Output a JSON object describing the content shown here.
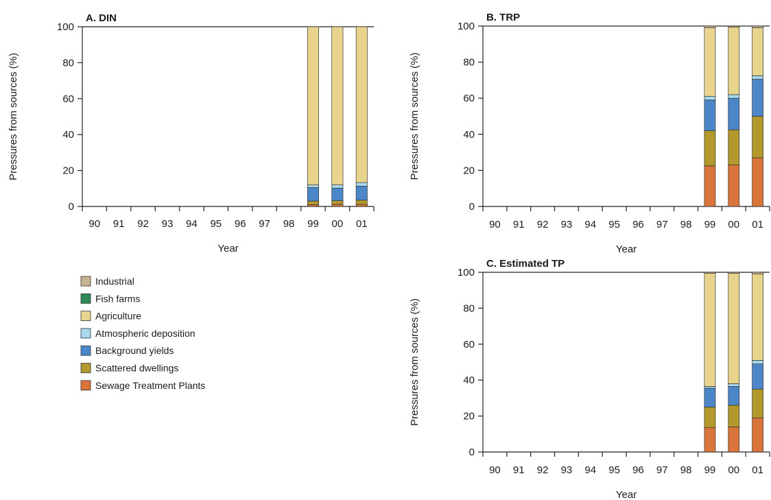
{
  "chart_data": [
    {
      "type": "bar",
      "stacked": true,
      "title": "A. DIN",
      "xlabel": "Year",
      "ylabel": "Pressures from sources (%)",
      "ylim": [
        0,
        100
      ],
      "yticks": [
        0,
        20,
        40,
        60,
        80,
        100
      ],
      "categories": [
        "90",
        "91",
        "92",
        "93",
        "94",
        "95",
        "96",
        "97",
        "98",
        "99",
        "00",
        "01"
      ],
      "series": [
        {
          "name": "Sewage Treatment Plants",
          "values": [
            null,
            null,
            null,
            null,
            null,
            null,
            null,
            null,
            null,
            1.0,
            1.2,
            1.2
          ]
        },
        {
          "name": "Scattered dwellings",
          "values": [
            null,
            null,
            null,
            null,
            null,
            null,
            null,
            null,
            null,
            2.0,
            2.0,
            2.3
          ]
        },
        {
          "name": "Background yields",
          "values": [
            null,
            null,
            null,
            null,
            null,
            null,
            null,
            null,
            null,
            7.5,
            7.0,
            7.8
          ]
        },
        {
          "name": "Atmospheric deposition",
          "values": [
            null,
            null,
            null,
            null,
            null,
            null,
            null,
            null,
            null,
            1.5,
            1.8,
            2.0
          ]
        },
        {
          "name": "Agriculture",
          "values": [
            null,
            null,
            null,
            null,
            null,
            null,
            null,
            null,
            null,
            88.0,
            88.0,
            86.7
          ]
        },
        {
          "name": "Fish farms",
          "values": [
            null,
            null,
            null,
            null,
            null,
            null,
            null,
            null,
            null,
            0,
            0,
            0
          ]
        },
        {
          "name": "Industrial",
          "values": [
            null,
            null,
            null,
            null,
            null,
            null,
            null,
            null,
            null,
            0,
            0,
            0
          ]
        }
      ]
    },
    {
      "type": "bar",
      "stacked": true,
      "title": "B. TRP",
      "xlabel": "Year",
      "ylabel": "Pressures from sources (%)",
      "ylim": [
        0,
        100
      ],
      "yticks": [
        0,
        20,
        40,
        60,
        80,
        100
      ],
      "categories": [
        "90",
        "91",
        "92",
        "93",
        "94",
        "95",
        "96",
        "97",
        "98",
        "99",
        "00",
        "01"
      ],
      "series": [
        {
          "name": "Sewage Treatment Plants",
          "values": [
            null,
            null,
            null,
            null,
            null,
            null,
            null,
            null,
            null,
            22.5,
            23.0,
            27.0
          ]
        },
        {
          "name": "Scattered dwellings",
          "values": [
            null,
            null,
            null,
            null,
            null,
            null,
            null,
            null,
            null,
            19.5,
            19.5,
            23.0
          ]
        },
        {
          "name": "Background yields",
          "values": [
            null,
            null,
            null,
            null,
            null,
            null,
            null,
            null,
            null,
            17.0,
            17.5,
            20.5
          ]
        },
        {
          "name": "Atmospheric deposition",
          "values": [
            null,
            null,
            null,
            null,
            null,
            null,
            null,
            null,
            null,
            2.0,
            2.0,
            2.0
          ]
        },
        {
          "name": "Agriculture",
          "values": [
            null,
            null,
            null,
            null,
            null,
            null,
            null,
            null,
            null,
            38.0,
            37.5,
            26.5
          ]
        },
        {
          "name": "Fish farms",
          "values": [
            null,
            null,
            null,
            null,
            null,
            null,
            null,
            null,
            null,
            0,
            0,
            0
          ]
        },
        {
          "name": "Industrial",
          "values": [
            null,
            null,
            null,
            null,
            null,
            null,
            null,
            null,
            null,
            1.0,
            0.5,
            1.0
          ]
        }
      ]
    },
    {
      "type": "bar",
      "stacked": true,
      "title": "C. Estimated TP",
      "xlabel": "Year",
      "ylabel": "Pressures from sources (%)",
      "ylim": [
        0,
        100
      ],
      "yticks": [
        0,
        20,
        40,
        60,
        80,
        100
      ],
      "categories": [
        "90",
        "91",
        "92",
        "93",
        "94",
        "95",
        "96",
        "97",
        "98",
        "99",
        "00",
        "01"
      ],
      "series": [
        {
          "name": "Sewage Treatment Plants",
          "values": [
            null,
            null,
            null,
            null,
            null,
            null,
            null,
            null,
            null,
            13.5,
            14.0,
            19.0
          ]
        },
        {
          "name": "Scattered dwellings",
          "values": [
            null,
            null,
            null,
            null,
            null,
            null,
            null,
            null,
            null,
            11.5,
            12.0,
            16.0
          ]
        },
        {
          "name": "Background yields",
          "values": [
            null,
            null,
            null,
            null,
            null,
            null,
            null,
            null,
            null,
            10.5,
            10.5,
            14.0
          ]
        },
        {
          "name": "Atmospheric deposition",
          "values": [
            null,
            null,
            null,
            null,
            null,
            null,
            null,
            null,
            null,
            1.0,
            1.5,
            2.0
          ]
        },
        {
          "name": "Agriculture",
          "values": [
            null,
            null,
            null,
            null,
            null,
            null,
            null,
            null,
            null,
            63.0,
            61.5,
            48.0
          ]
        },
        {
          "name": "Fish farms",
          "values": [
            null,
            null,
            null,
            null,
            null,
            null,
            null,
            null,
            null,
            0,
            0,
            0
          ]
        },
        {
          "name": "Industrial",
          "values": [
            null,
            null,
            null,
            null,
            null,
            null,
            null,
            null,
            null,
            0.5,
            0.5,
            1.0
          ]
        }
      ]
    }
  ],
  "legend": {
    "items": [
      {
        "label": "Industrial",
        "color": "#c4b394"
      },
      {
        "label": "Fish farms",
        "color": "#2e8b57"
      },
      {
        "label": "Agriculture",
        "color": "#e8d48c"
      },
      {
        "label": "Atmospheric deposition",
        "color": "#a6d9f0"
      },
      {
        "label": "Background yields",
        "color": "#4a86c8"
      },
      {
        "label": "Scattered dwellings",
        "color": "#b3982b"
      },
      {
        "label": "Sewage Treatment Plants",
        "color": "#d9743a"
      }
    ]
  },
  "series_colors": {
    "Sewage Treatment Plants": "#d9743a",
    "Scattered dwellings": "#b3982b",
    "Background yields": "#4a86c8",
    "Atmospheric deposition": "#a6d9f0",
    "Agriculture": "#e8d48c",
    "Fish farms": "#2e8b57",
    "Industrial": "#c4b394"
  }
}
